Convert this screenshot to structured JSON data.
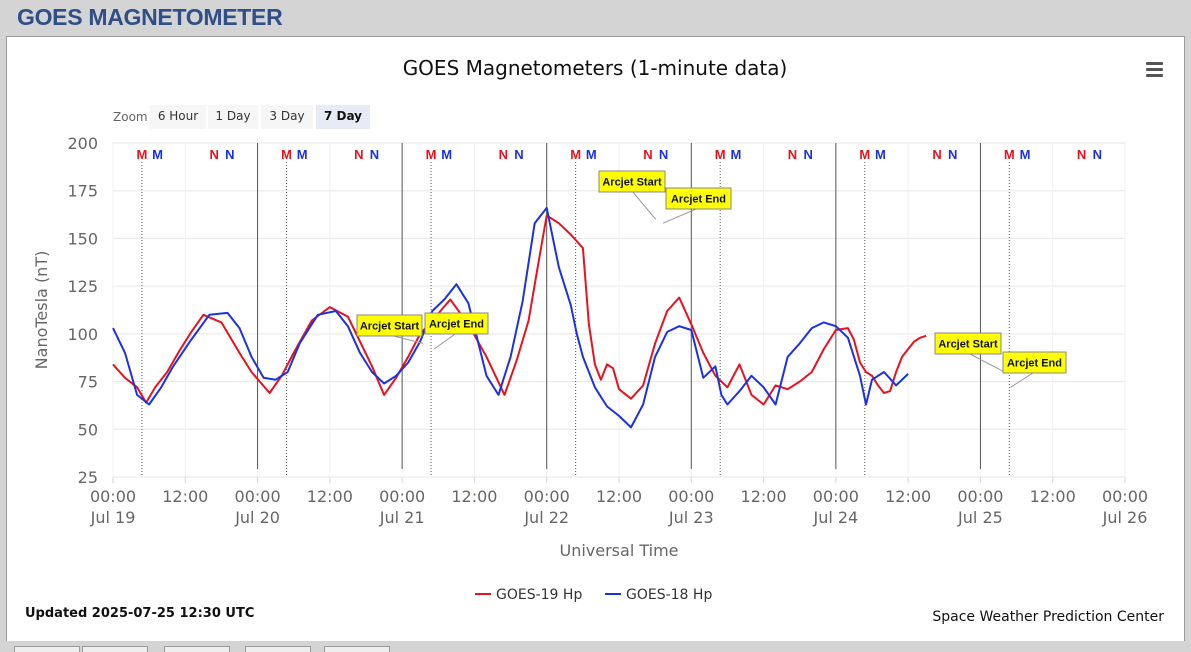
{
  "page": {
    "title": "GOES MAGNETOMETER"
  },
  "chart_data": {
    "type": "line",
    "title": "GOES Magnetometers (1-minute data)",
    "xlabel": "Universal Time",
    "ylabel": "NanoTesla (nT)",
    "ylim": [
      25,
      200
    ],
    "yticks": [
      25,
      50,
      75,
      100,
      125,
      150,
      175,
      200
    ],
    "xlim": [
      "2025-07-19 00:00",
      "2025-07-26 00:00"
    ],
    "xticks": [
      {
        "time": "00:00",
        "date": "Jul 19"
      },
      {
        "time": "12:00",
        "date": ""
      },
      {
        "time": "00:00",
        "date": "Jul 20"
      },
      {
        "time": "12:00",
        "date": ""
      },
      {
        "time": "00:00",
        "date": "Jul 21"
      },
      {
        "time": "12:00",
        "date": ""
      },
      {
        "time": "00:00",
        "date": "Jul 22"
      },
      {
        "time": "12:00",
        "date": ""
      },
      {
        "time": "00:00",
        "date": "Jul 23"
      },
      {
        "time": "12:00",
        "date": ""
      },
      {
        "time": "00:00",
        "date": "Jul 24"
      },
      {
        "time": "12:00",
        "date": ""
      },
      {
        "time": "00:00",
        "date": "Jul 25"
      },
      {
        "time": "12:00",
        "date": ""
      },
      {
        "time": "00:00",
        "date": "Jul 26"
      }
    ],
    "grid": true,
    "legend_position": "bottom-center",
    "zoom": {
      "label": "Zoom",
      "buttons": [
        "6 Hour",
        "1 Day",
        "3 Day",
        "7 Day"
      ],
      "selected": "7 Day"
    },
    "series": [
      {
        "name": "GOES-19 Hp",
        "color": "#e8121c",
        "x": [
          0,
          2,
          4,
          5.5,
          7,
          9,
          11,
          13,
          15,
          18,
          21,
          23,
          26,
          28,
          30,
          33,
          36,
          39,
          41,
          43,
          45,
          47,
          49,
          51,
          53,
          56,
          59,
          62,
          65,
          67,
          69,
          70.5,
          72,
          74,
          76,
          78,
          79,
          80,
          81,
          82,
          83,
          84,
          86,
          88,
          90,
          92,
          94,
          96,
          98,
          100,
          102,
          104,
          106,
          108,
          110,
          112,
          114,
          116,
          118,
          120,
          122,
          123,
          124,
          125,
          126,
          127,
          128,
          129,
          130,
          131,
          132,
          133,
          134,
          135
        ],
        "y": [
          84,
          77,
          72,
          64,
          72,
          80,
          91,
          101,
          110,
          106,
          90,
          80,
          69,
          78,
          90,
          107,
          114,
          109,
          96,
          83,
          68,
          77,
          88,
          100,
          107,
          118,
          105,
          88,
          68,
          86,
          107,
          135,
          162,
          158,
          152,
          145,
          105,
          84,
          76,
          84,
          82,
          71,
          66,
          73,
          95,
          112,
          119,
          105,
          90,
          78,
          72,
          84,
          68,
          63,
          73,
          71,
          75,
          80,
          92,
          102,
          103,
          97,
          85,
          80,
          78,
          73,
          69,
          70,
          80,
          88,
          92,
          96,
          98,
          99
        ]
      },
      {
        "name": "GOES-18 Hp",
        "color": "#1a31e6",
        "x": [
          0,
          2,
          4,
          6,
          8,
          10,
          13,
          16,
          19,
          21,
          23,
          25,
          27,
          29,
          31,
          34,
          37,
          39,
          41,
          43,
          45,
          47,
          49,
          51,
          53,
          55,
          57,
          59,
          62,
          64,
          66,
          68,
          70,
          72,
          74,
          76,
          77,
          78,
          79,
          80,
          81,
          82,
          84,
          86,
          88,
          90,
          92,
          94,
          96,
          98,
          100,
          101,
          102,
          104,
          106,
          108,
          110,
          112,
          114,
          116,
          118,
          120,
          122,
          124,
          125,
          126,
          128,
          130,
          132
        ],
        "y": [
          103,
          90,
          68,
          63,
          72,
          83,
          97,
          110,
          111,
          103,
          88,
          77,
          76,
          80,
          95,
          110,
          112,
          104,
          90,
          80,
          74,
          78,
          85,
          96,
          112,
          118,
          126,
          116,
          78,
          68,
          88,
          117,
          158,
          166,
          135,
          115,
          100,
          88,
          80,
          72,
          67,
          62,
          57,
          51,
          63,
          88,
          101,
          104,
          102,
          77,
          83,
          68,
          63,
          70,
          78,
          72,
          63,
          88,
          95,
          103,
          106,
          104,
          98,
          78,
          63,
          76,
          80,
          73,
          79
        ]
      }
    ],
    "markers": [
      {
        "label": "M",
        "color": "#e8121c",
        "x": 4.8
      },
      {
        "label": "M",
        "color": "#1a31e6",
        "x": 7.4
      },
      {
        "label": "N",
        "color": "#e8121c",
        "x": 16.8
      },
      {
        "label": "N",
        "color": "#1a31e6",
        "x": 19.4
      },
      {
        "label": "M",
        "color": "#e8121c",
        "x": 28.8
      },
      {
        "label": "M",
        "color": "#1a31e6",
        "x": 31.4
      },
      {
        "label": "N",
        "color": "#e8121c",
        "x": 40.8
      },
      {
        "label": "N",
        "color": "#1a31e6",
        "x": 43.4
      },
      {
        "label": "M",
        "color": "#e8121c",
        "x": 52.8
      },
      {
        "label": "M",
        "color": "#1a31e6",
        "x": 55.4
      },
      {
        "label": "N",
        "color": "#e8121c",
        "x": 64.8
      },
      {
        "label": "N",
        "color": "#1a31e6",
        "x": 67.4
      },
      {
        "label": "M",
        "color": "#e8121c",
        "x": 76.8
      },
      {
        "label": "M",
        "color": "#1a31e6",
        "x": 79.4
      },
      {
        "label": "N",
        "color": "#e8121c",
        "x": 88.8
      },
      {
        "label": "N",
        "color": "#1a31e6",
        "x": 91.4
      },
      {
        "label": "M",
        "color": "#e8121c",
        "x": 100.8
      },
      {
        "label": "M",
        "color": "#1a31e6",
        "x": 103.4
      },
      {
        "label": "N",
        "color": "#e8121c",
        "x": 112.8
      },
      {
        "label": "N",
        "color": "#1a31e6",
        "x": 115.4
      },
      {
        "label": "M",
        "color": "#e8121c",
        "x": 124.8
      },
      {
        "label": "M",
        "color": "#1a31e6",
        "x": 127.4
      },
      {
        "label": "N",
        "color": "#e8121c",
        "x": 136.8
      },
      {
        "label": "N",
        "color": "#1a31e6",
        "x": 139.4
      },
      {
        "label": "M",
        "color": "#e8121c",
        "x": 148.8
      },
      {
        "label": "M",
        "color": "#1a31e6",
        "x": 151.4
      },
      {
        "label": "N",
        "color": "#e8121c",
        "x": 160.8
      },
      {
        "label": "N",
        "color": "#1a31e6",
        "x": 163.4
      }
    ],
    "flags": [
      {
        "label": "Arcjet Start",
        "x": 51.5,
        "y": 95
      },
      {
        "label": "Arcjet End",
        "x": 53.3,
        "y": 92
      },
      {
        "label": "Arcjet Start",
        "x": 90.1,
        "y": 160
      },
      {
        "label": "Arcjet End",
        "x": 91.3,
        "y": 158
      },
      {
        "label": "Arcjet Start",
        "x": 148.0,
        "y": 80
      },
      {
        "label": "Arcjet End",
        "x": 149.0,
        "y": 72
      }
    ],
    "footer": {
      "updated": "Updated 2025-07-25 12:30 UTC",
      "credit": "Space Weather Prediction Center"
    }
  }
}
